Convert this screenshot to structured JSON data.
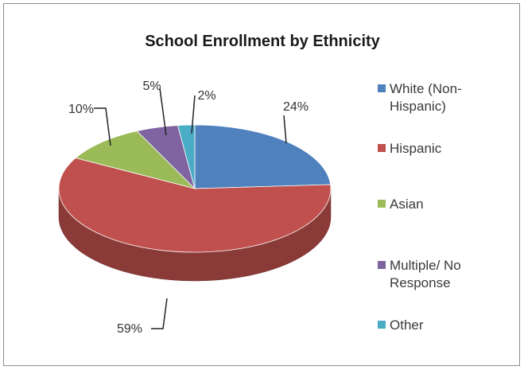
{
  "chart_data": {
    "type": "pie",
    "title": "School Enrollment by Ethnicity",
    "categories": [
      "White (Non-Hispanic)",
      "Hispanic",
      "Asian",
      "Multiple/ No Response",
      "Other"
    ],
    "values": [
      24,
      59,
      10,
      5,
      2
    ],
    "data_labels": [
      "24%",
      "59%",
      "10%",
      "5%",
      "2%"
    ],
    "colors": [
      "#4f81bd",
      "#c0504d",
      "#9bbb59",
      "#8064a2",
      "#4bacc6"
    ],
    "legend_placement": "right",
    "style": "3d"
  }
}
